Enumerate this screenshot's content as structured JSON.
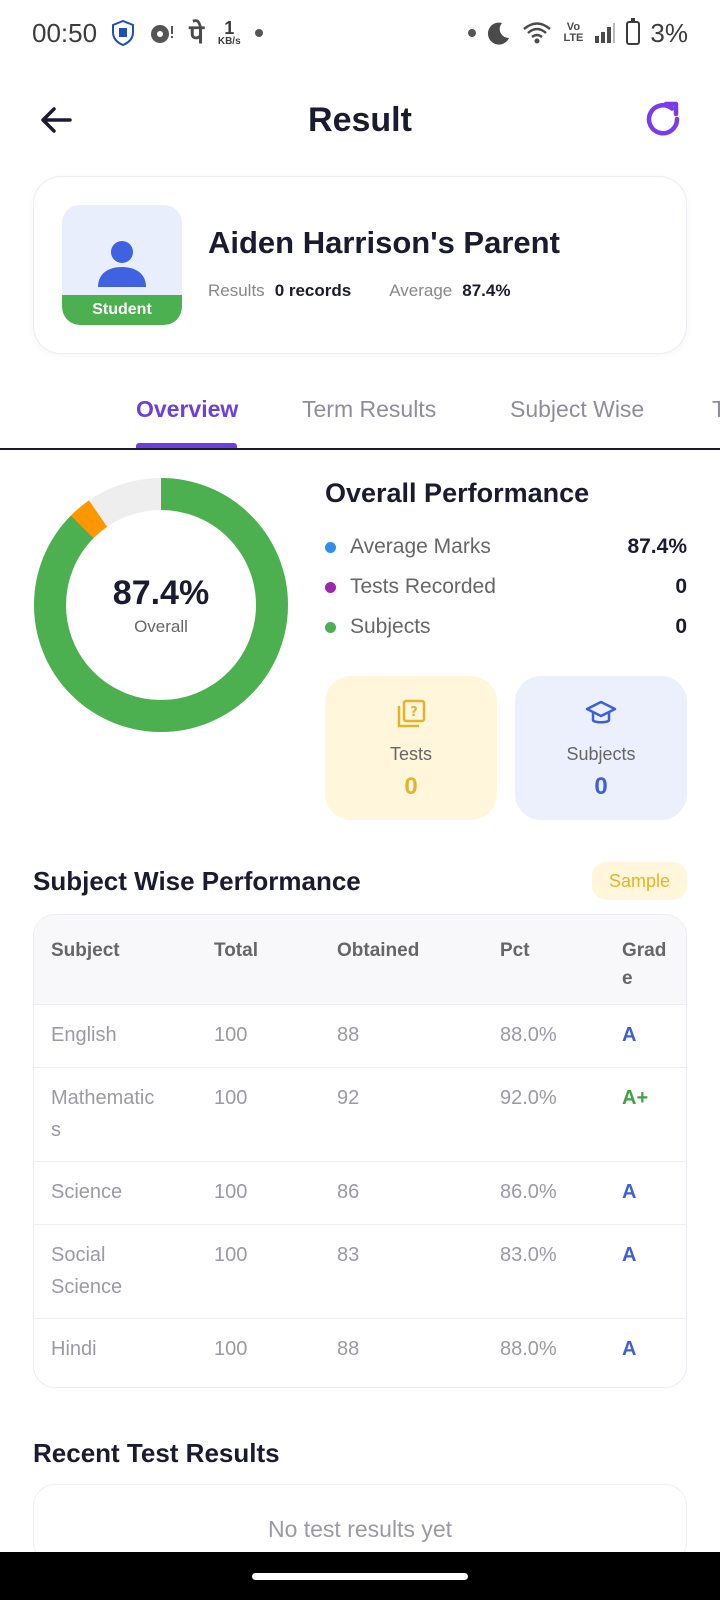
{
  "status_bar": {
    "time": "00:50",
    "kbs_value": "1",
    "kbs_unit": "KB/s",
    "battery": "3%",
    "network": "Vo LTE"
  },
  "header": {
    "title": "Result"
  },
  "profile": {
    "name": "Aiden Harrison's Parent",
    "role_badge": "Student",
    "results_label": "Results",
    "results_value": "0 records",
    "average_label": "Average",
    "average_value": "87.4%"
  },
  "tabs": [
    {
      "label": "Overview",
      "active": true
    },
    {
      "label": "Term Results",
      "active": false
    },
    {
      "label": "Subject Wise",
      "active": false
    },
    {
      "label": "T",
      "active": false
    }
  ],
  "overall": {
    "donut_value": "87.4%",
    "donut_label": "Overall",
    "donut_fraction": 0.874,
    "title": "Overall Performance",
    "rows": [
      {
        "label": "Average Marks",
        "value": "87.4%",
        "color": "#2f8fe8"
      },
      {
        "label": "Tests Recorded",
        "value": "0",
        "color": "#9c27b0"
      },
      {
        "label": "Subjects",
        "value": "0",
        "color": "#4caf50"
      }
    ],
    "cards": [
      {
        "label": "Tests",
        "value": "0",
        "bg": "#fff6dc",
        "color": "#e3b42b"
      },
      {
        "label": "Subjects",
        "value": "0",
        "bg": "#ecf0fd",
        "color": "#3f5fd8"
      }
    ]
  },
  "subject_wise": {
    "title": "Subject Wise Performance",
    "badge": "Sample",
    "headers": [
      "Subject",
      "Total",
      "Obtained",
      "Pct",
      "Grad\ne"
    ],
    "rows": [
      {
        "subject": "English",
        "total": "100",
        "obtained": "88",
        "pct": "88.0%",
        "grade": "A"
      },
      {
        "subject": "Mathematic\ns",
        "total": "100",
        "obtained": "92",
        "pct": "92.0%",
        "grade": "A+"
      },
      {
        "subject": "Science",
        "total": "100",
        "obtained": "86",
        "pct": "86.0%",
        "grade": "A"
      },
      {
        "subject": "Social\nScience",
        "total": "100",
        "obtained": "83",
        "pct": "83.0%",
        "grade": "A"
      },
      {
        "subject": "Hindi",
        "total": "100",
        "obtained": "88",
        "pct": "88.0%",
        "grade": "A"
      }
    ]
  },
  "recent": {
    "title": "Recent Test Results",
    "empty_text": "No test results yet"
  }
}
